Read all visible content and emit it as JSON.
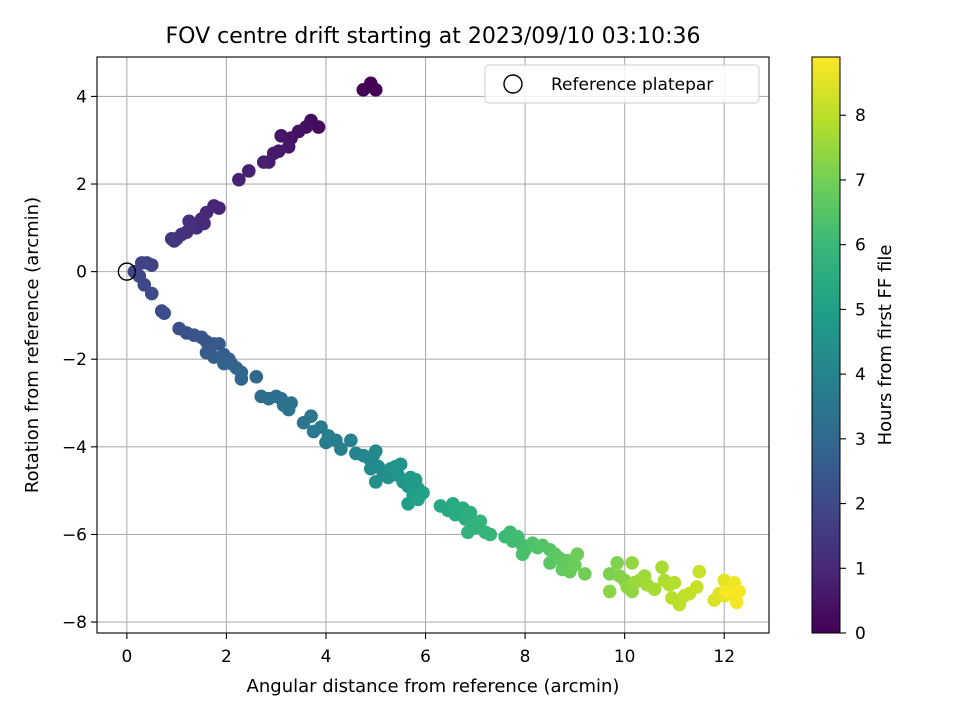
{
  "chart_data": {
    "type": "scatter",
    "title": "FOV centre drift starting at 2023/09/10 03:10:36",
    "xlabel": "Angular distance from reference (arcmin)",
    "ylabel": "Rotation from reference (arcmin)",
    "xlim": [
      -0.6,
      12.9
    ],
    "ylim": [
      -8.25,
      4.9
    ],
    "xticks": [
      0,
      2,
      4,
      6,
      8,
      10,
      12
    ],
    "yticks": [
      -8,
      -6,
      -4,
      -2,
      0,
      2,
      4
    ],
    "xtick_labels": [
      "0",
      "2",
      "4",
      "6",
      "8",
      "10",
      "12"
    ],
    "ytick_labels": [
      "−8",
      "−6",
      "−4",
      "−2",
      "0",
      "2",
      "4"
    ],
    "grid": true,
    "legend": {
      "position": "top-right",
      "entries": [
        "Reference platepar"
      ]
    },
    "reference_point": {
      "x": 0,
      "y": 0
    },
    "colorbar": {
      "label": "Hours from first FF file",
      "colormap": "viridis",
      "range": [
        0,
        8.9
      ],
      "ticks": [
        0,
        1,
        2,
        3,
        4,
        5,
        6,
        7,
        8
      ],
      "tick_labels": [
        "0",
        "1",
        "2",
        "3",
        "4",
        "5",
        "6",
        "7",
        "8"
      ],
      "stops": [
        "#440154",
        "#482878",
        "#3e4989",
        "#31688e",
        "#26828e",
        "#1f9e89",
        "#35b779",
        "#6ece58",
        "#b5de2b",
        "#fde725"
      ]
    },
    "series": [
      {
        "points": [
          [
            4.75,
            4.15,
            0.0
          ],
          [
            4.9,
            4.3,
            0.03
          ],
          [
            5.0,
            4.15,
            0.06
          ],
          [
            3.85,
            3.3,
            0.25
          ],
          [
            3.7,
            3.45,
            0.3
          ],
          [
            3.6,
            3.3,
            0.35
          ],
          [
            3.45,
            3.2,
            0.4
          ],
          [
            3.3,
            3.05,
            0.45
          ],
          [
            3.1,
            3.1,
            0.5
          ],
          [
            3.25,
            2.85,
            0.55
          ],
          [
            3.05,
            2.75,
            0.6
          ],
          [
            2.95,
            2.7,
            0.65
          ],
          [
            2.85,
            2.5,
            0.7
          ],
          [
            2.75,
            2.5,
            0.75
          ],
          [
            2.45,
            2.3,
            0.8
          ],
          [
            2.25,
            2.1,
            0.85
          ],
          [
            1.85,
            1.45,
            0.9
          ],
          [
            1.75,
            1.5,
            0.95
          ],
          [
            1.6,
            1.35,
            1.0
          ],
          [
            1.5,
            1.2,
            1.05
          ],
          [
            1.55,
            1.1,
            1.1
          ],
          [
            1.4,
            1.0,
            1.15
          ],
          [
            1.25,
            1.15,
            1.2
          ],
          [
            1.2,
            0.9,
            1.25
          ],
          [
            1.1,
            0.85,
            1.3
          ],
          [
            1.0,
            0.75,
            1.35
          ],
          [
            0.95,
            0.7,
            1.4
          ],
          [
            0.9,
            0.75,
            1.45
          ],
          [
            0.5,
            0.15,
            1.7
          ],
          [
            0.4,
            0.2,
            1.75
          ],
          [
            0.3,
            0.2,
            1.8
          ],
          [
            0.15,
            0.0,
            1.85
          ],
          [
            0.25,
            -0.1,
            1.9
          ],
          [
            0.35,
            -0.3,
            1.95
          ],
          [
            0.5,
            -0.5,
            2.0
          ],
          [
            0.7,
            -0.9,
            2.05
          ],
          [
            0.75,
            -0.95,
            2.1
          ],
          [
            1.05,
            -1.3,
            2.2
          ],
          [
            1.2,
            -1.4,
            2.25
          ],
          [
            1.35,
            -1.45,
            2.3
          ],
          [
            1.5,
            -1.5,
            2.35
          ],
          [
            1.6,
            -1.6,
            2.4
          ],
          [
            1.75,
            -1.65,
            2.45
          ],
          [
            1.85,
            -1.65,
            2.5
          ],
          [
            1.6,
            -1.85,
            2.55
          ],
          [
            1.75,
            -1.95,
            2.6
          ],
          [
            1.95,
            -1.9,
            2.65
          ],
          [
            2.05,
            -2.0,
            2.7
          ],
          [
            2.1,
            -2.1,
            2.75
          ],
          [
            1.95,
            -2.1,
            2.8
          ],
          [
            2.2,
            -2.2,
            2.85
          ],
          [
            2.3,
            -2.3,
            2.9
          ],
          [
            2.3,
            -2.45,
            2.95
          ],
          [
            2.6,
            -2.4,
            3.0
          ],
          [
            2.7,
            -2.85,
            3.1
          ],
          [
            2.85,
            -2.9,
            3.15
          ],
          [
            3.0,
            -2.85,
            3.2
          ],
          [
            3.1,
            -2.9,
            3.25
          ],
          [
            3.15,
            -3.05,
            3.3
          ],
          [
            3.25,
            -3.15,
            3.35
          ],
          [
            3.3,
            -3.0,
            3.4
          ],
          [
            3.55,
            -3.45,
            3.5
          ],
          [
            3.7,
            -3.3,
            3.55
          ],
          [
            3.75,
            -3.65,
            3.6
          ],
          [
            3.9,
            -3.55,
            3.65
          ],
          [
            4.0,
            -3.9,
            3.7
          ],
          [
            4.05,
            -3.75,
            3.75
          ],
          [
            4.2,
            -3.85,
            3.8
          ],
          [
            4.3,
            -4.05,
            3.85
          ],
          [
            4.5,
            -3.85,
            3.9
          ],
          [
            4.6,
            -4.15,
            4.0
          ],
          [
            4.75,
            -4.2,
            4.05
          ],
          [
            4.85,
            -4.25,
            4.1
          ],
          [
            4.95,
            -4.2,
            4.15
          ],
          [
            5.0,
            -4.1,
            4.2
          ],
          [
            4.9,
            -4.5,
            4.25
          ],
          [
            5.05,
            -4.45,
            4.3
          ],
          [
            5.15,
            -4.6,
            4.35
          ],
          [
            5.0,
            -4.8,
            4.4
          ],
          [
            5.25,
            -4.7,
            4.45
          ],
          [
            5.3,
            -4.5,
            4.5
          ],
          [
            5.4,
            -4.45,
            4.55
          ],
          [
            5.5,
            -4.4,
            4.6
          ],
          [
            5.45,
            -4.65,
            4.65
          ],
          [
            5.55,
            -4.8,
            4.7
          ],
          [
            5.65,
            -4.9,
            4.75
          ],
          [
            5.7,
            -4.7,
            4.8
          ],
          [
            5.8,
            -4.75,
            4.85
          ],
          [
            5.85,
            -4.95,
            4.9
          ],
          [
            5.75,
            -5.1,
            4.95
          ],
          [
            5.65,
            -5.3,
            5.0
          ],
          [
            5.95,
            -5.05,
            5.05
          ],
          [
            5.85,
            -5.2,
            5.1
          ],
          [
            6.3,
            -5.35,
            5.3
          ],
          [
            6.45,
            -5.45,
            5.35
          ],
          [
            6.55,
            -5.3,
            5.4
          ],
          [
            6.6,
            -5.55,
            5.45
          ],
          [
            6.75,
            -5.4,
            5.5
          ],
          [
            6.8,
            -5.65,
            5.55
          ],
          [
            6.9,
            -5.5,
            5.6
          ],
          [
            6.95,
            -5.75,
            5.65
          ],
          [
            6.85,
            -5.95,
            5.7
          ],
          [
            7.0,
            -5.85,
            5.75
          ],
          [
            7.1,
            -5.7,
            5.8
          ],
          [
            7.2,
            -5.95,
            5.85
          ],
          [
            7.3,
            -6.0,
            5.9
          ],
          [
            7.6,
            -6.05,
            6.0
          ],
          [
            7.7,
            -5.95,
            6.05
          ],
          [
            7.75,
            -6.15,
            6.1
          ],
          [
            7.85,
            -6.05,
            6.15
          ],
          [
            7.95,
            -6.25,
            6.2
          ],
          [
            8.0,
            -6.35,
            6.25
          ],
          [
            7.95,
            -6.45,
            6.3
          ],
          [
            8.15,
            -6.2,
            6.35
          ],
          [
            8.25,
            -6.3,
            6.4
          ],
          [
            8.35,
            -6.25,
            6.45
          ],
          [
            8.5,
            -6.35,
            6.5
          ],
          [
            8.6,
            -6.45,
            6.55
          ],
          [
            8.5,
            -6.65,
            6.6
          ],
          [
            8.7,
            -6.55,
            6.65
          ],
          [
            8.75,
            -6.8,
            6.7
          ],
          [
            8.85,
            -6.6,
            6.75
          ],
          [
            8.9,
            -6.85,
            6.8
          ],
          [
            9.0,
            -6.7,
            6.85
          ],
          [
            9.05,
            -6.45,
            6.9
          ],
          [
            9.2,
            -6.9,
            6.95
          ],
          [
            9.7,
            -6.9,
            7.1
          ],
          [
            9.85,
            -6.65,
            7.15
          ],
          [
            9.9,
            -6.95,
            7.2
          ],
          [
            10.0,
            -7.05,
            7.25
          ],
          [
            9.7,
            -7.3,
            7.3
          ],
          [
            10.05,
            -7.2,
            7.35
          ],
          [
            10.15,
            -7.3,
            7.4
          ],
          [
            10.15,
            -6.65,
            7.45
          ],
          [
            10.3,
            -7.05,
            7.5
          ],
          [
            10.2,
            -7.1,
            7.55
          ],
          [
            10.4,
            -6.95,
            7.6
          ],
          [
            10.45,
            -7.15,
            7.65
          ],
          [
            10.6,
            -7.25,
            7.7
          ],
          [
            10.75,
            -6.75,
            7.75
          ],
          [
            10.8,
            -7.05,
            7.8
          ],
          [
            10.9,
            -7.15,
            7.85
          ],
          [
            11.0,
            -7.1,
            7.9
          ],
          [
            10.95,
            -7.45,
            7.95
          ],
          [
            11.1,
            -7.6,
            8.0
          ],
          [
            11.2,
            -7.4,
            8.05
          ],
          [
            11.3,
            -7.35,
            8.1
          ],
          [
            11.45,
            -7.2,
            8.15
          ],
          [
            11.5,
            -6.85,
            8.2
          ],
          [
            11.8,
            -7.5,
            8.4
          ],
          [
            11.9,
            -7.35,
            8.45
          ],
          [
            12.0,
            -7.4,
            8.5
          ],
          [
            12.0,
            -7.05,
            8.55
          ],
          [
            12.1,
            -7.2,
            8.6
          ],
          [
            12.15,
            -7.35,
            8.65
          ],
          [
            12.2,
            -7.1,
            8.7
          ],
          [
            12.25,
            -7.55,
            8.75
          ],
          [
            12.3,
            -7.3,
            8.8
          ],
          [
            12.05,
            -7.3,
            8.85
          ]
        ]
      }
    ]
  }
}
